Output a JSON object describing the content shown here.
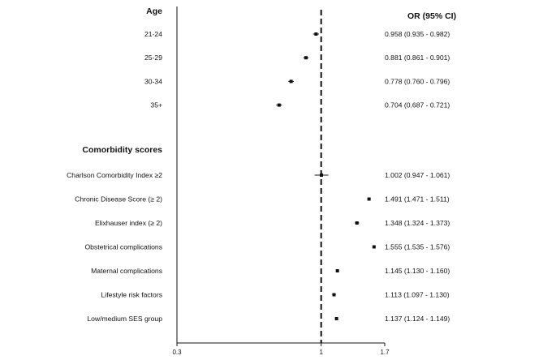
{
  "chart_data": {
    "type": "forest",
    "title": "",
    "xlabel": "",
    "ylabel": "",
    "x_scale": "log",
    "xlim": [
      0.3,
      1.7
    ],
    "x_ticks": [
      "0.3",
      "1",
      "1.7"
    ],
    "reference_line": 1,
    "ci_column_header": "OR (95% CI)",
    "groups": [
      {
        "header": "Age",
        "rows": [
          {
            "label": "21-24",
            "or": 0.958,
            "lo": 0.935,
            "hi": 0.982,
            "text": "0.958 (0.935 - 0.982)"
          },
          {
            "label": "25-29",
            "or": 0.881,
            "lo": 0.861,
            "hi": 0.901,
            "text": "0.881 (0.861 - 0.901)"
          },
          {
            "label": "30-34",
            "or": 0.778,
            "lo": 0.76,
            "hi": 0.796,
            "text": "0.778 (0.760 - 0.796)"
          },
          {
            "label": "35+",
            "or": 0.704,
            "lo": 0.687,
            "hi": 0.721,
            "text": "0.704 (0.687 - 0.721)"
          }
        ]
      },
      {
        "header": "Comorbidity scores",
        "rows": [
          {
            "label": "Charlson Comorbidity Index ≥2",
            "or": 1.002,
            "lo": 0.947,
            "hi": 1.061,
            "text": "1.002 (0.947 - 1.061)"
          },
          {
            "label": "Chronic Disease Score (≥ 2)",
            "or": 1.491,
            "lo": 1.471,
            "hi": 1.511,
            "text": "1.491 (1.471 - 1.511)"
          },
          {
            "label": "Elixhauser index (≥ 2)",
            "or": 1.348,
            "lo": 1.324,
            "hi": 1.373,
            "text": "1.348 (1.324 - 1.373)"
          },
          {
            "label": "Obstetrical complications",
            "or": 1.555,
            "lo": 1.535,
            "hi": 1.576,
            "text": "1.555 (1.535 - 1.576)"
          },
          {
            "label": "Maternal complications",
            "or": 1.145,
            "lo": 1.13,
            "hi": 1.16,
            "text": "1.145 (1.130 - 1.160)"
          },
          {
            "label": "Lifestyle risk factors",
            "or": 1.113,
            "lo": 1.097,
            "hi": 1.13,
            "text": "1.113 (1.097 - 1.130)"
          },
          {
            "label": "Low/medium SES group",
            "or": 1.137,
            "lo": 1.124,
            "hi": 1.149,
            "text": "1.137 (1.124 - 1.149)"
          }
        ]
      }
    ],
    "colors": {
      "marks": "#111111",
      "axis": "#111111",
      "background": "#ffffff"
    }
  }
}
